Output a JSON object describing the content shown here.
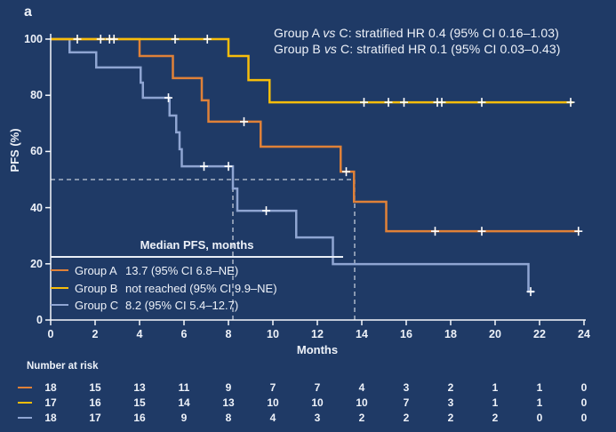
{
  "panel_label": "a",
  "colors": {
    "background": "#1F3A66",
    "text": "#EEF2F9",
    "axis": "#F5F8FC",
    "dashed": "#C2CAD8",
    "censor": "#FFFFFF",
    "group_a": "#E08138",
    "group_b": "#F7BD0B",
    "group_c": "#8FA5D2"
  },
  "annotations": [
    {
      "pre": "Group A ",
      "vs": "vs",
      "post": " C: stratified HR 0.4 (95% CI 0.16–1.03)"
    },
    {
      "pre": "Group B ",
      "vs": "vs",
      "post": " C: stratified HR 0.1 (95% CI 0.03–0.43)"
    }
  ],
  "legend": {
    "header": "Median PFS, months",
    "rows": [
      {
        "group": "Group A",
        "value": "13.7 (95% CI 6.8–NE)",
        "color": "#E08138"
      },
      {
        "group": "Group B",
        "value": "not reached (95% CI 9.9–NE)",
        "color": "#F7BD0B"
      },
      {
        "group": "Group C",
        "value": "8.2 (95% CI 5.4–12.7)",
        "color": "#8FA5D2"
      }
    ]
  },
  "at_risk": {
    "title": "Number at risk",
    "months": [
      0,
      2,
      4,
      6,
      8,
      10,
      12,
      14,
      16,
      18,
      20,
      22,
      24
    ],
    "rows": [
      {
        "group": "Group A",
        "color": "#E08138",
        "counts": [
          18,
          15,
          13,
          11,
          9,
          7,
          7,
          4,
          3,
          2,
          1,
          1,
          0
        ]
      },
      {
        "group": "Group B",
        "color": "#F7BD0B",
        "counts": [
          17,
          16,
          15,
          14,
          13,
          10,
          10,
          10,
          7,
          3,
          1,
          1,
          0
        ]
      },
      {
        "group": "Group C",
        "color": "#8FA5D2",
        "counts": [
          18,
          17,
          16,
          9,
          8,
          4,
          3,
          2,
          2,
          2,
          2,
          0,
          0
        ]
      }
    ]
  },
  "chart_data": {
    "type": "line",
    "subtype": "kaplan_meier_step",
    "title": "",
    "xlabel": "Months",
    "ylabel": "PFS (%)",
    "xlim": [
      0,
      24
    ],
    "ylim": [
      0,
      100
    ],
    "xticks": [
      0,
      2,
      4,
      6,
      8,
      10,
      12,
      14,
      16,
      18,
      20,
      22,
      24
    ],
    "yticks": [
      0,
      20,
      40,
      60,
      80,
      100
    ],
    "grid": false,
    "legend_position": "inside-lower-left",
    "draw_order": [
      2,
      0,
      1
    ],
    "series": [
      {
        "name": "Group A",
        "color": "#E08138",
        "start": [
          0,
          100
        ],
        "drops": [
          [
            4.0,
            94.0
          ],
          [
            5.5,
            86.1
          ],
          [
            6.8,
            78.2
          ],
          [
            7.1,
            70.6
          ],
          [
            9.45,
            61.7
          ],
          [
            13.05,
            52.8
          ],
          [
            13.65,
            42.1
          ],
          [
            15.1,
            31.6
          ]
        ],
        "end_month": 23.8,
        "censors": [
          [
            8.7,
            70.6
          ],
          [
            13.3,
            52.8
          ],
          [
            17.3,
            31.6
          ],
          [
            19.4,
            31.6
          ],
          [
            23.75,
            31.6
          ]
        ]
      },
      {
        "name": "Group B",
        "color": "#F7BD0B",
        "start": [
          0,
          100
        ],
        "drops": [
          [
            8.0,
            94.0
          ],
          [
            8.9,
            85.4
          ],
          [
            9.85,
            77.5
          ]
        ],
        "end_month": 23.5,
        "censors": [
          [
            1.2,
            100
          ],
          [
            2.25,
            100
          ],
          [
            2.65,
            100
          ],
          [
            2.85,
            100
          ],
          [
            5.6,
            100
          ],
          [
            7.05,
            100
          ],
          [
            14.1,
            77.5
          ],
          [
            15.2,
            77.5
          ],
          [
            15.9,
            77.5
          ],
          [
            17.4,
            77.5
          ],
          [
            17.6,
            77.5
          ],
          [
            19.4,
            77.5
          ],
          [
            23.4,
            77.5
          ]
        ]
      },
      {
        "name": "Group C",
        "color": "#8FA5D2",
        "start": [
          0,
          100
        ],
        "drops": [
          [
            0.85,
            95.3
          ],
          [
            2.05,
            89.9
          ],
          [
            4.05,
            84.5
          ],
          [
            4.15,
            79.1
          ],
          [
            5.35,
            72.8
          ],
          [
            5.65,
            66.8
          ],
          [
            5.8,
            60.8
          ],
          [
            5.9,
            54.7
          ],
          [
            8.2,
            46.8
          ],
          [
            8.4,
            38.9
          ],
          [
            11.05,
            29.4
          ],
          [
            12.7,
            19.9
          ],
          [
            21.5,
            10.1
          ]
        ],
        "end_month": 21.75,
        "censors": [
          [
            5.3,
            79.1
          ],
          [
            6.9,
            54.7
          ],
          [
            8.0,
            54.7
          ],
          [
            9.7,
            38.9
          ],
          [
            21.6,
            10.1
          ]
        ]
      }
    ],
    "reference_lines": {
      "horizontal": {
        "y": 50,
        "x_from": 0,
        "x_to": 13.68
      },
      "median_verticals": [
        8.2,
        13.68
      ]
    }
  }
}
